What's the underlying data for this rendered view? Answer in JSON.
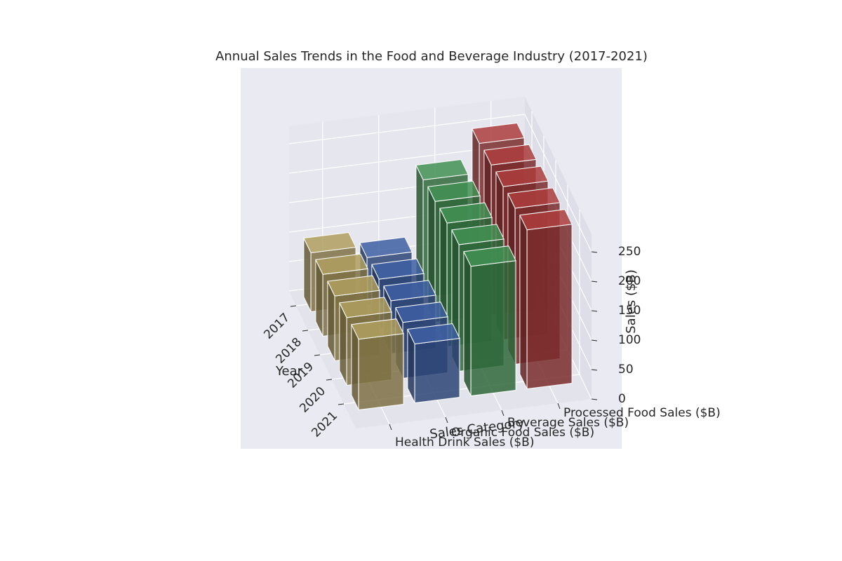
{
  "chart_data": {
    "type": "bar3d",
    "title": "Annual Sales Trends in the Food and Beverage Industry (2017-2021)",
    "xlabel": "Sales Category",
    "ylabel": "Year",
    "zlabel": "Sales ($B)",
    "categories": [
      "2017",
      "2018",
      "2019",
      "2020",
      "2021"
    ],
    "series": [
      {
        "name": "Health Drink Sales ($B)",
        "color": "#a8975a",
        "values": [
          100,
          105,
          110,
          115,
          120
        ]
      },
      {
        "name": "Organic Food Sales ($B)",
        "color": "#3b5a9a",
        "values": [
          80,
          85,
          90,
          95,
          100
        ]
      },
      {
        "name": "Beverage Sales ($B)",
        "color": "#3f8a4f",
        "values": [
          200,
          205,
          210,
          215,
          220
        ]
      },
      {
        "name": "Processed Food Sales ($B)",
        "color": "#a33a3a",
        "values": [
          250,
          255,
          260,
          265,
          270
        ]
      }
    ],
    "zlim": [
      0,
      280
    ],
    "zticks": [
      0,
      50,
      100,
      150,
      200,
      250
    ],
    "grid": true
  }
}
